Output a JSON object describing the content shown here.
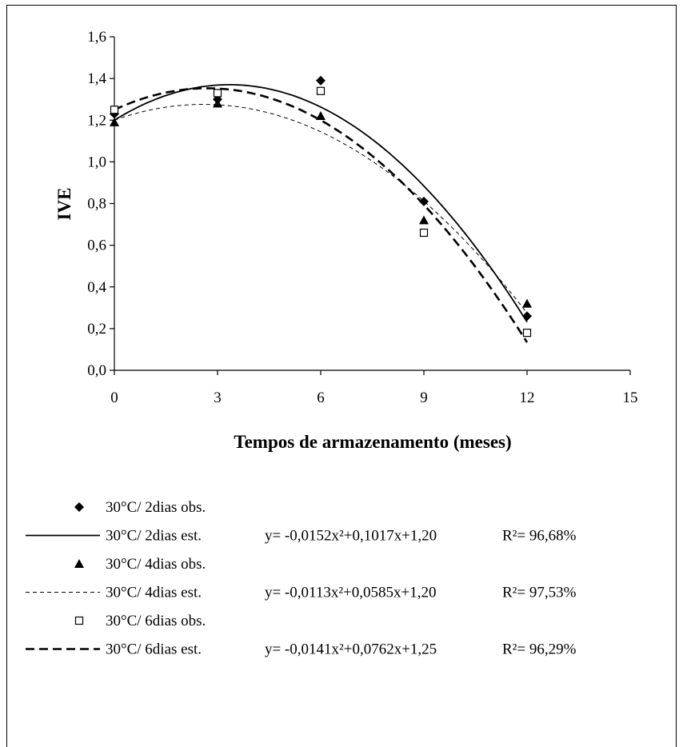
{
  "chart_data": {
    "type": "scatter",
    "title": "",
    "xlabel": "Tempos de armazenamento (meses)",
    "ylabel": "IVE",
    "xlim": [
      0,
      15
    ],
    "ylim": [
      0.0,
      1.6
    ],
    "xticks": [
      0,
      3,
      6,
      9,
      12,
      15
    ],
    "xtick_labels": [
      "0",
      "3",
      "6",
      "9",
      "12",
      "15"
    ],
    "yticks": [
      0.0,
      0.2,
      0.4,
      0.6,
      0.8,
      1.0,
      1.2,
      1.4,
      1.6
    ],
    "ytick_labels": [
      "0,0",
      "0,2",
      "0,4",
      "0,6",
      "0,8",
      "1,0",
      "1,2",
      "1,4",
      "1,6"
    ],
    "grid": false,
    "legend_position": "bottom",
    "series": [
      {
        "name": "30°C/ 2dias obs.",
        "kind": "markers",
        "marker": "diamond",
        "x": [
          0,
          3,
          6,
          9,
          12
        ],
        "y": [
          1.23,
          1.3,
          1.39,
          0.81,
          0.26
        ]
      },
      {
        "name": "30°C/ 2dias est.",
        "kind": "line",
        "style": "solid",
        "equation": "y= -0,0152x²+0,1017x+1,20",
        "r2": "R²= 96,68%",
        "coefficients": [
          -0.0152,
          0.1017,
          1.2
        ],
        "x_range": [
          0,
          12
        ]
      },
      {
        "name": "30°C/ 4dias obs.",
        "kind": "markers",
        "marker": "triangle",
        "x": [
          0,
          3,
          6,
          9,
          12
        ],
        "y": [
          1.19,
          1.28,
          1.22,
          0.72,
          0.32
        ]
      },
      {
        "name": "30°C/ 4dias est.",
        "kind": "line",
        "style": "thin-dashed",
        "equation": "y= -0,0113x²+0,0585x+1,20",
        "r2": "R²= 97,53%",
        "coefficients": [
          -0.0113,
          0.0585,
          1.2
        ],
        "x_range": [
          0,
          12
        ]
      },
      {
        "name": "30°C/ 6dias obs.",
        "kind": "markers",
        "marker": "square-open",
        "x": [
          0,
          3,
          6,
          9,
          12
        ],
        "y": [
          1.25,
          1.33,
          1.34,
          0.66,
          0.18
        ]
      },
      {
        "name": "30°C/ 6dias est.",
        "kind": "line",
        "style": "thick-dashed",
        "equation": "y= -0,0141x²+0,0762x+1,25",
        "r2": "R²= 96,29%",
        "coefficients": [
          -0.0141,
          0.0762,
          1.25
        ],
        "x_range": [
          0,
          12
        ]
      }
    ]
  }
}
